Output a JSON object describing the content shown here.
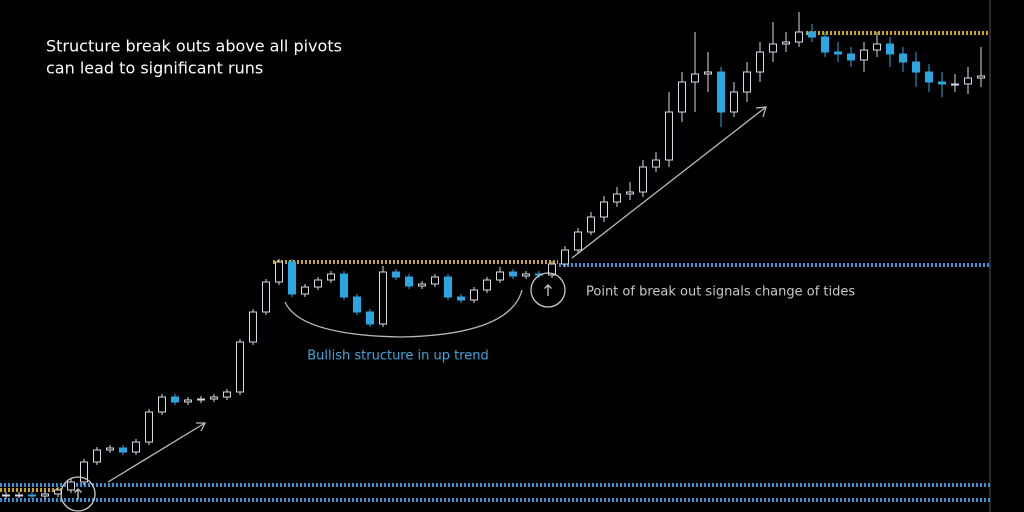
{
  "chart_data": {
    "type": "candlestick",
    "title_lines": [
      "Structure break outs above all pivots",
      "can lead to significant runs"
    ],
    "annotations": [
      "Bullish structure in up trend",
      "Point of break out signals change of tides"
    ],
    "ylim": [
      0,
      512
    ],
    "up_color": "#d4dae3",
    "down_color": "#2aa7e2",
    "open": [
      16,
      17,
      17,
      16,
      18,
      22,
      30,
      50,
      62,
      64,
      60,
      70,
      100,
      115,
      110,
      112,
      113,
      115,
      120,
      170,
      200,
      230,
      250,
      218,
      225,
      232,
      238,
      215,
      200,
      188,
      240,
      235,
      226,
      228,
      235,
      215,
      212,
      222,
      232,
      240,
      236,
      238,
      237,
      248,
      262,
      280,
      295,
      310,
      318,
      320,
      345,
      352,
      400,
      430,
      438,
      440,
      400,
      420,
      440,
      460,
      468,
      470,
      480,
      475,
      460,
      458,
      452,
      462,
      468,
      458,
      450,
      440,
      430,
      428,
      428,
      434
    ],
    "high": [
      20,
      20,
      20,
      21,
      25,
      33,
      53,
      65,
      67,
      67,
      73,
      103,
      118,
      118,
      115,
      116,
      118,
      123,
      173,
      203,
      233,
      253,
      253,
      228,
      235,
      241,
      241,
      218,
      203,
      246,
      243,
      238,
      231,
      238,
      238,
      218,
      225,
      235,
      245,
      243,
      241,
      241,
      251,
      266,
      284,
      300,
      316,
      325,
      330,
      352,
      360,
      420,
      440,
      480,
      460,
      445,
      430,
      450,
      470,
      490,
      480,
      500,
      488,
      480,
      470,
      465,
      470,
      480,
      475,
      465,
      460,
      448,
      440,
      438,
      445,
      465
    ],
    "low": [
      13,
      14,
      13,
      13,
      15,
      19,
      27,
      47,
      59,
      57,
      57,
      67,
      97,
      107,
      107,
      109,
      110,
      112,
      117,
      167,
      197,
      227,
      215,
      215,
      222,
      229,
      212,
      197,
      185,
      185,
      232,
      223,
      223,
      225,
      212,
      209,
      209,
      219,
      229,
      233,
      233,
      234,
      234,
      245,
      259,
      277,
      290,
      305,
      312,
      315,
      340,
      345,
      390,
      400,
      420,
      385,
      395,
      410,
      430,
      450,
      460,
      465,
      470,
      455,
      450,
      445,
      440,
      455,
      445,
      440,
      425,
      420,
      415,
      420,
      418,
      425
    ],
    "close": [
      17,
      17,
      16,
      18,
      22,
      30,
      50,
      62,
      64,
      60,
      70,
      100,
      115,
      110,
      112,
      113,
      115,
      120,
      170,
      200,
      230,
      250,
      218,
      225,
      232,
      238,
      215,
      200,
      188,
      240,
      235,
      226,
      228,
      235,
      215,
      212,
      222,
      232,
      240,
      236,
      238,
      237,
      248,
      262,
      280,
      295,
      310,
      318,
      320,
      345,
      352,
      400,
      430,
      438,
      440,
      400,
      420,
      440,
      460,
      468,
      470,
      480,
      475,
      460,
      458,
      452,
      462,
      468,
      458,
      450,
      440,
      430,
      428,
      428,
      434,
      436
    ],
    "levels": [
      {
        "value": 247,
        "color": "#3a8fd6",
        "start": 43
      },
      {
        "value": 250,
        "color": "#c9a227",
        "start": 21,
        "end": 42
      },
      {
        "value": 479,
        "color": "#c9a227",
        "start": 62
      },
      {
        "value": 27,
        "color": "#3a8fd6",
        "start": 0
      },
      {
        "value": 12,
        "color": "#3a8fd6",
        "start": 0
      },
      {
        "value": 22,
        "color": "#c9a227",
        "start": 0,
        "end": 4
      }
    ]
  }
}
